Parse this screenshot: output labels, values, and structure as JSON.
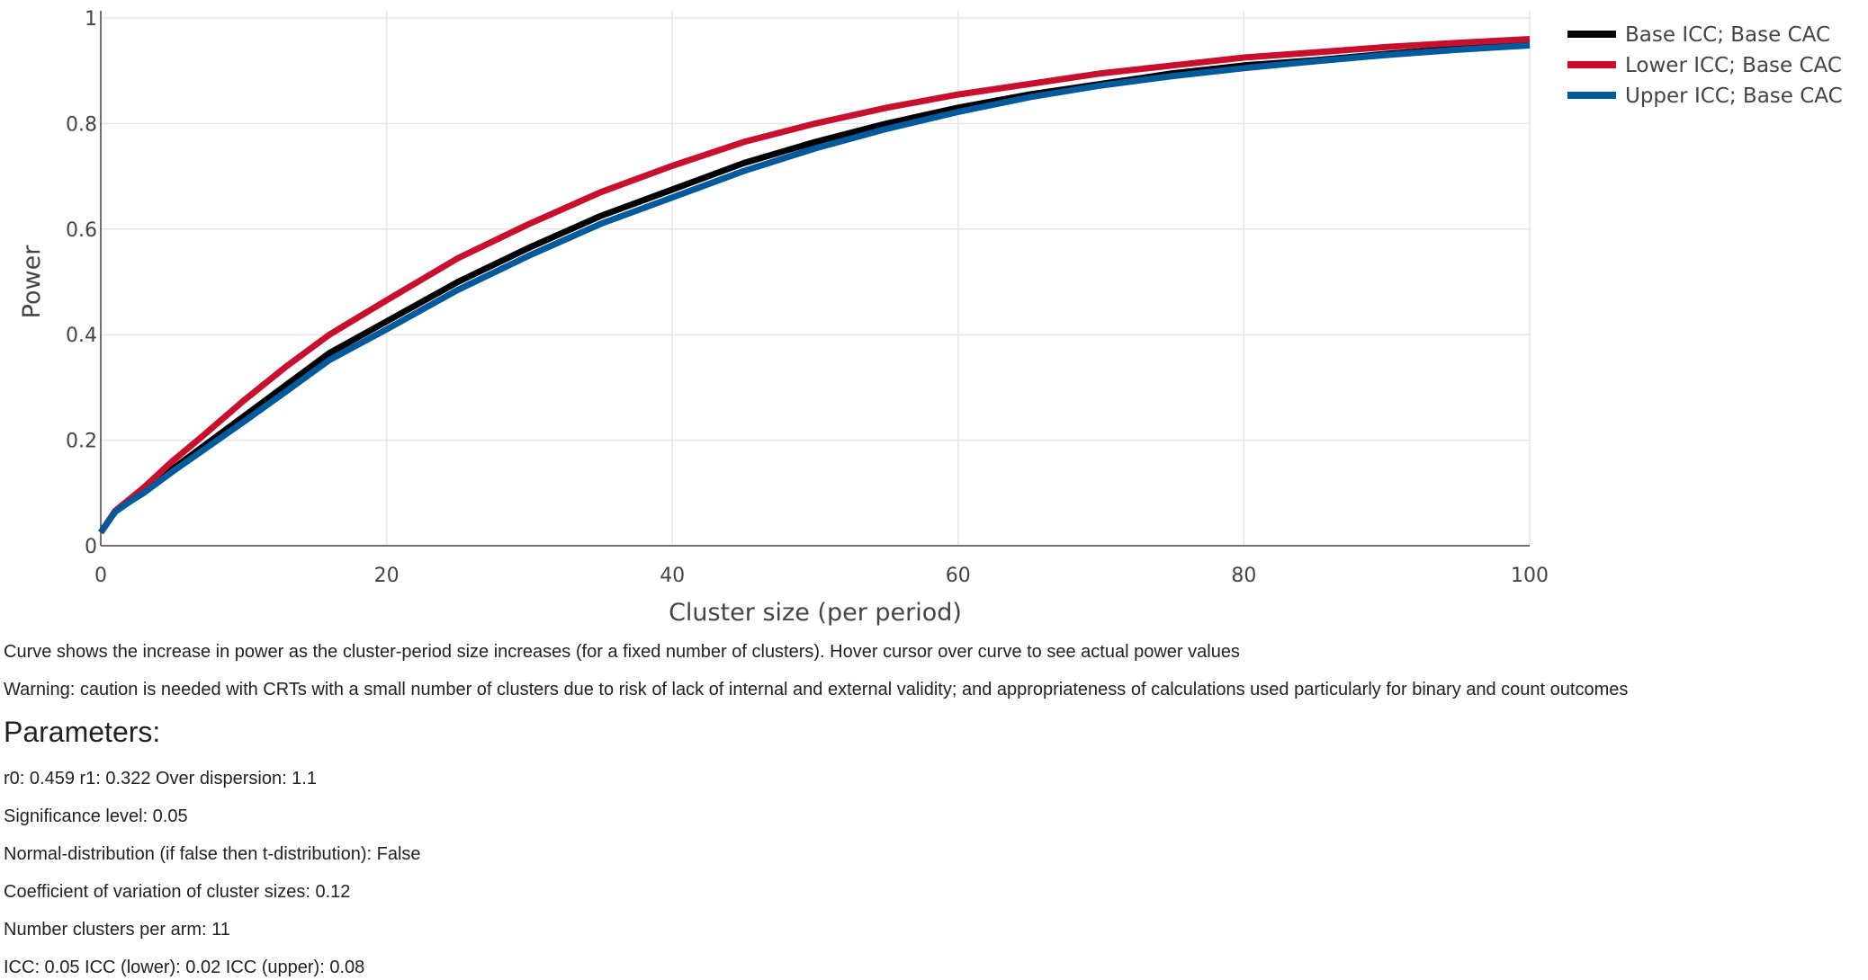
{
  "chart_data": {
    "type": "line",
    "xlabel": "Cluster size (per period)",
    "ylabel": "Power",
    "xlim": [
      0,
      100
    ],
    "ylim": [
      0,
      1
    ],
    "x_ticks": [
      0,
      20,
      40,
      60,
      80,
      100
    ],
    "y_ticks": [
      0,
      0.2,
      0.4,
      0.6,
      0.8,
      1
    ],
    "y_tick_labels": [
      "0",
      "0.2",
      "0.4",
      "0.6",
      "0.8",
      "1"
    ],
    "grid": true,
    "legend_position": "top-right",
    "x": [
      0,
      1,
      2,
      3,
      5,
      7,
      10,
      13,
      16,
      20,
      25,
      30,
      35,
      40,
      45,
      50,
      55,
      60,
      65,
      70,
      75,
      80,
      85,
      90,
      95,
      100
    ],
    "series": [
      {
        "name": "Base ICC; Base CAC",
        "color": "#000000",
        "values": [
          0.025,
          0.065,
          0.085,
          0.105,
          0.145,
          0.185,
          0.245,
          0.305,
          0.365,
          0.425,
          0.5,
          0.565,
          0.625,
          0.675,
          0.725,
          0.765,
          0.8,
          0.83,
          0.855,
          0.875,
          0.895,
          0.91,
          0.92,
          0.932,
          0.942,
          0.95
        ]
      },
      {
        "name": "Lower ICC; Base CAC",
        "color": "#c8102e",
        "values": [
          0.025,
          0.066,
          0.088,
          0.11,
          0.16,
          0.205,
          0.275,
          0.34,
          0.4,
          0.465,
          0.545,
          0.61,
          0.67,
          0.72,
          0.765,
          0.8,
          0.83,
          0.855,
          0.875,
          0.895,
          0.91,
          0.925,
          0.935,
          0.945,
          0.953,
          0.96
        ]
      },
      {
        "name": "Upper ICC; Base CAC",
        "color": "#005a9c",
        "values": [
          0.025,
          0.064,
          0.083,
          0.1,
          0.14,
          0.178,
          0.235,
          0.293,
          0.352,
          0.41,
          0.485,
          0.55,
          0.61,
          0.66,
          0.71,
          0.753,
          0.79,
          0.822,
          0.85,
          0.872,
          0.89,
          0.905,
          0.918,
          0.93,
          0.94,
          0.948
        ]
      }
    ]
  },
  "description": "Curve shows the increase in power as the cluster-period size increases (for a fixed number of clusters). Hover cursor over curve to see actual power values",
  "warning": "Warning: caution is needed with CRTs with a small number of clusters due to risk of lack of internal and external validity; and appropriateness of calculations used particularly for binary and count outcomes",
  "parameters": {
    "heading": "Parameters:",
    "lines": [
      "r0: 0.459 r1: 0.322 Over dispersion: 1.1",
      "Significance level: 0.05",
      "Normal-distribution (if false then t-distribution): False",
      "Coefficient of variation of cluster sizes: 0.12",
      "Number clusters per arm: 11",
      "ICC: 0.05 ICC (lower): 0.02 ICC (upper): 0.08"
    ]
  }
}
